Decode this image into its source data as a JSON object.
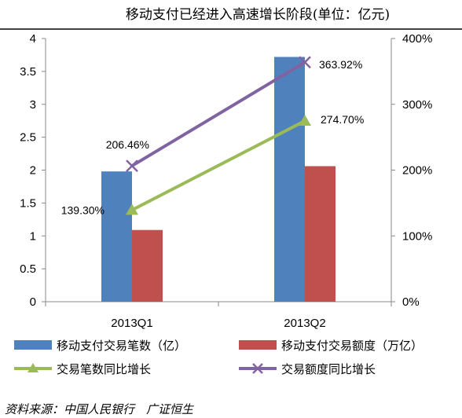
{
  "chart_data": {
    "type": "bar+line",
    "title": "移动支付已经进入高速增长阶段(单位：亿元)",
    "categories": [
      "2013Q1",
      "2013Q2"
    ],
    "y_left": {
      "range": [
        0,
        4
      ],
      "ticks": [
        "0",
        "0.5",
        "1",
        "1.5",
        "2",
        "2.5",
        "3",
        "3.5",
        "4"
      ]
    },
    "y_right": {
      "range": [
        0,
        400
      ],
      "ticks": [
        "0%",
        "100%",
        "200%",
        "300%",
        "400%"
      ]
    },
    "bar_series": [
      {
        "name": "移动支付交易笔数（亿）",
        "color": "#4f81bd",
        "values": [
          1.98,
          3.72
        ]
      },
      {
        "name": "移动支付交易额度（万亿）",
        "color": "#c0504d",
        "values": [
          1.09,
          2.06
        ]
      }
    ],
    "line_series": [
      {
        "name": "交易笔数同比增长",
        "color": "#9bbb59",
        "marker": "triangle",
        "values": [
          139.3,
          274.7
        ],
        "labels": [
          "139.30%",
          "274.70%"
        ]
      },
      {
        "name": "交易额度同比增长",
        "color": "#8064a2",
        "marker": "x",
        "values": [
          206.46,
          363.92
        ],
        "labels": [
          "206.46%",
          "363.92%"
        ]
      }
    ],
    "grid": false,
    "legend_position": "bottom"
  },
  "source": "资料来源：中国人民银行　广证恒生"
}
